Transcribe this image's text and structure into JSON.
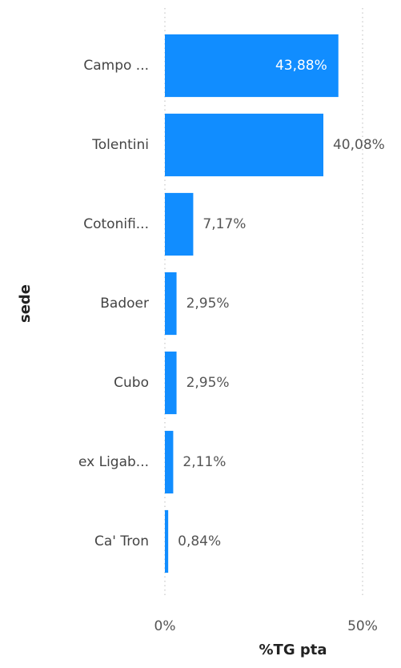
{
  "chart_data": {
    "type": "bar",
    "orientation": "horizontal",
    "categories": [
      "Campo ...",
      "Tolentini",
      "Cotonifi...",
      "Badoer",
      "Cubo",
      "ex Ligab...",
      "Ca' Tron"
    ],
    "values": [
      43.88,
      40.08,
      7.17,
      2.95,
      2.95,
      2.11,
      0.84
    ],
    "value_labels": [
      "43,88%",
      "40,08%",
      "7,17%",
      "2,95%",
      "2,95%",
      "2,11%",
      "0,84%"
    ],
    "color": "#118dff",
    "xlabel": "%TG pta",
    "ylabel": "sede",
    "xlim": [
      0,
      50
    ],
    "xticks": [
      {
        "value": 0,
        "label": "0%"
      },
      {
        "value": 50,
        "label": "50%"
      }
    ],
    "grid": true
  }
}
